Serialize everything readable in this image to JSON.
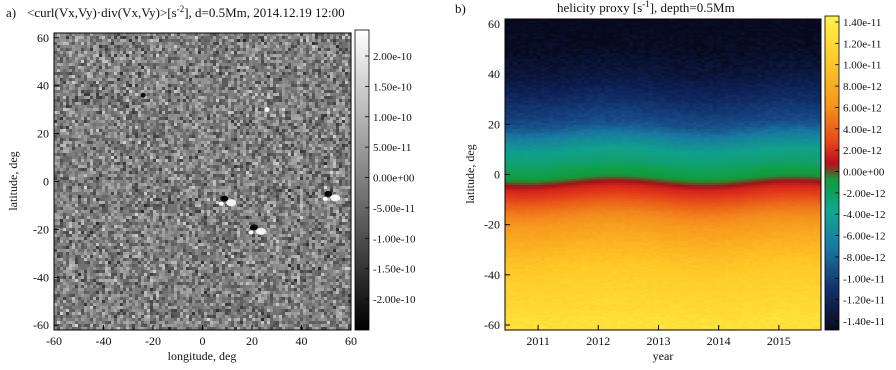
{
  "chart_data": [
    {
      "type": "heatmap",
      "panel_label": "a)",
      "title": "<curl(Vx,Vy)·div(Vx,Vy)>[s",
      "title_exp": "-2",
      "title_rest": "], d=0.5Mm, 2014.12.19 12:00",
      "xlabel": "longitude, deg",
      "ylabel": "latitude, deg",
      "xlim": [
        -60,
        60
      ],
      "ylim": [
        -62,
        62
      ],
      "xticks": [
        -60,
        -40,
        -20,
        0,
        20,
        40,
        60
      ],
      "yticks": [
        -60,
        -40,
        -20,
        0,
        20,
        40,
        60
      ],
      "colormap": "grayscale",
      "colorbar_ticks": [
        "2.00e-10",
        "1.50e-10",
        "1.00e-10",
        "5.00e-11",
        "0.00e+00",
        "-5.00e-11",
        "-1.00e-10",
        "-1.50e-10",
        "-2.00e-10"
      ],
      "features": [
        {
          "lon": 22,
          "lat": -20,
          "polarity": "bipolar"
        },
        {
          "lon": 10,
          "lat": -8,
          "polarity": "bipolar"
        },
        {
          "lon": 52,
          "lat": -6,
          "polarity": "bipolar"
        },
        {
          "lon": 26,
          "lat": 30,
          "polarity": "positive"
        },
        {
          "lon": -24,
          "lat": 36,
          "polarity": "negative"
        }
      ]
    },
    {
      "type": "heatmap",
      "panel_label": "b)",
      "title": "helicity proxy [s",
      "title_exp": "-1",
      "title_rest": "],  depth=0.5Mm",
      "xlabel": "year",
      "ylabel": "latitude, deg",
      "xlim": [
        2010.45,
        2015.7
      ],
      "ylim": [
        -62,
        62
      ],
      "xticks": [
        2011,
        2012,
        2013,
        2014,
        2015
      ],
      "yticks": [
        -60,
        -40,
        -20,
        0,
        20,
        40,
        60
      ],
      "colormap": "rainbow",
      "colorbar_ticks": [
        "1.40e-11",
        "1.20e-11",
        "1.00e-11",
        "8.00e-12",
        "6.00e-12",
        "4.00e-12",
        "2.00e-12",
        "0.00e+00",
        "-2.00e-12",
        "-4.00e-12",
        "-6.00e-12",
        "-8.00e-12",
        "-1.00e-11",
        "-1.20e-11",
        "-1.40e-11"
      ],
      "profile": {
        "latitude": [
          -60,
          -50,
          -40,
          -30,
          -20,
          -15,
          -10,
          -5,
          0,
          5,
          10,
          15,
          20,
          25,
          30,
          40,
          50,
          60
        ],
        "value": [
          1.25e-11,
          1.15e-11,
          1.05e-11,
          9e-12,
          7e-12,
          5.5e-12,
          3.5e-12,
          1.5e-12,
          -3e-12,
          -5e-12,
          -6e-12,
          -7.5e-12,
          -9.5e-12,
          -1.05e-11,
          -1.15e-11,
          -1.3e-11,
          -1.38e-11,
          -1.4e-11
        ]
      }
    }
  ]
}
